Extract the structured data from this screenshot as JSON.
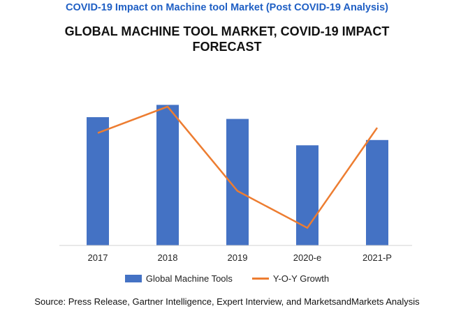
{
  "header": {
    "top_title": "COVID-19 Impact on Machine tool Market (Post COVID-19 Analysis)",
    "title_color": "#1f5fc4"
  },
  "chart_data": {
    "type": "bar",
    "title": "GLOBAL MACHINE TOOL MARKET, COVID-19 IMPACT FORECAST",
    "categories": [
      "2017",
      "2018",
      "2019",
      "2020-e",
      "2021-P"
    ],
    "series": [
      {
        "name": "Global Machine Tools",
        "type": "bar",
        "color": "#4472c4",
        "values": [
          73,
          80,
          72,
          57,
          60
        ]
      },
      {
        "name": "Y-O-Y Growth",
        "type": "line",
        "color": "#ed7d31",
        "values": [
          64,
          79,
          31,
          10,
          67
        ]
      }
    ],
    "ylim": [
      0,
      100
    ],
    "xlabel": "",
    "ylabel": "",
    "grid": false,
    "legend": "bottom"
  },
  "footer": {
    "source": "Source: Press Release, Gartner Intelligence, Expert Interview, and MarketsandMarkets Analysis"
  }
}
